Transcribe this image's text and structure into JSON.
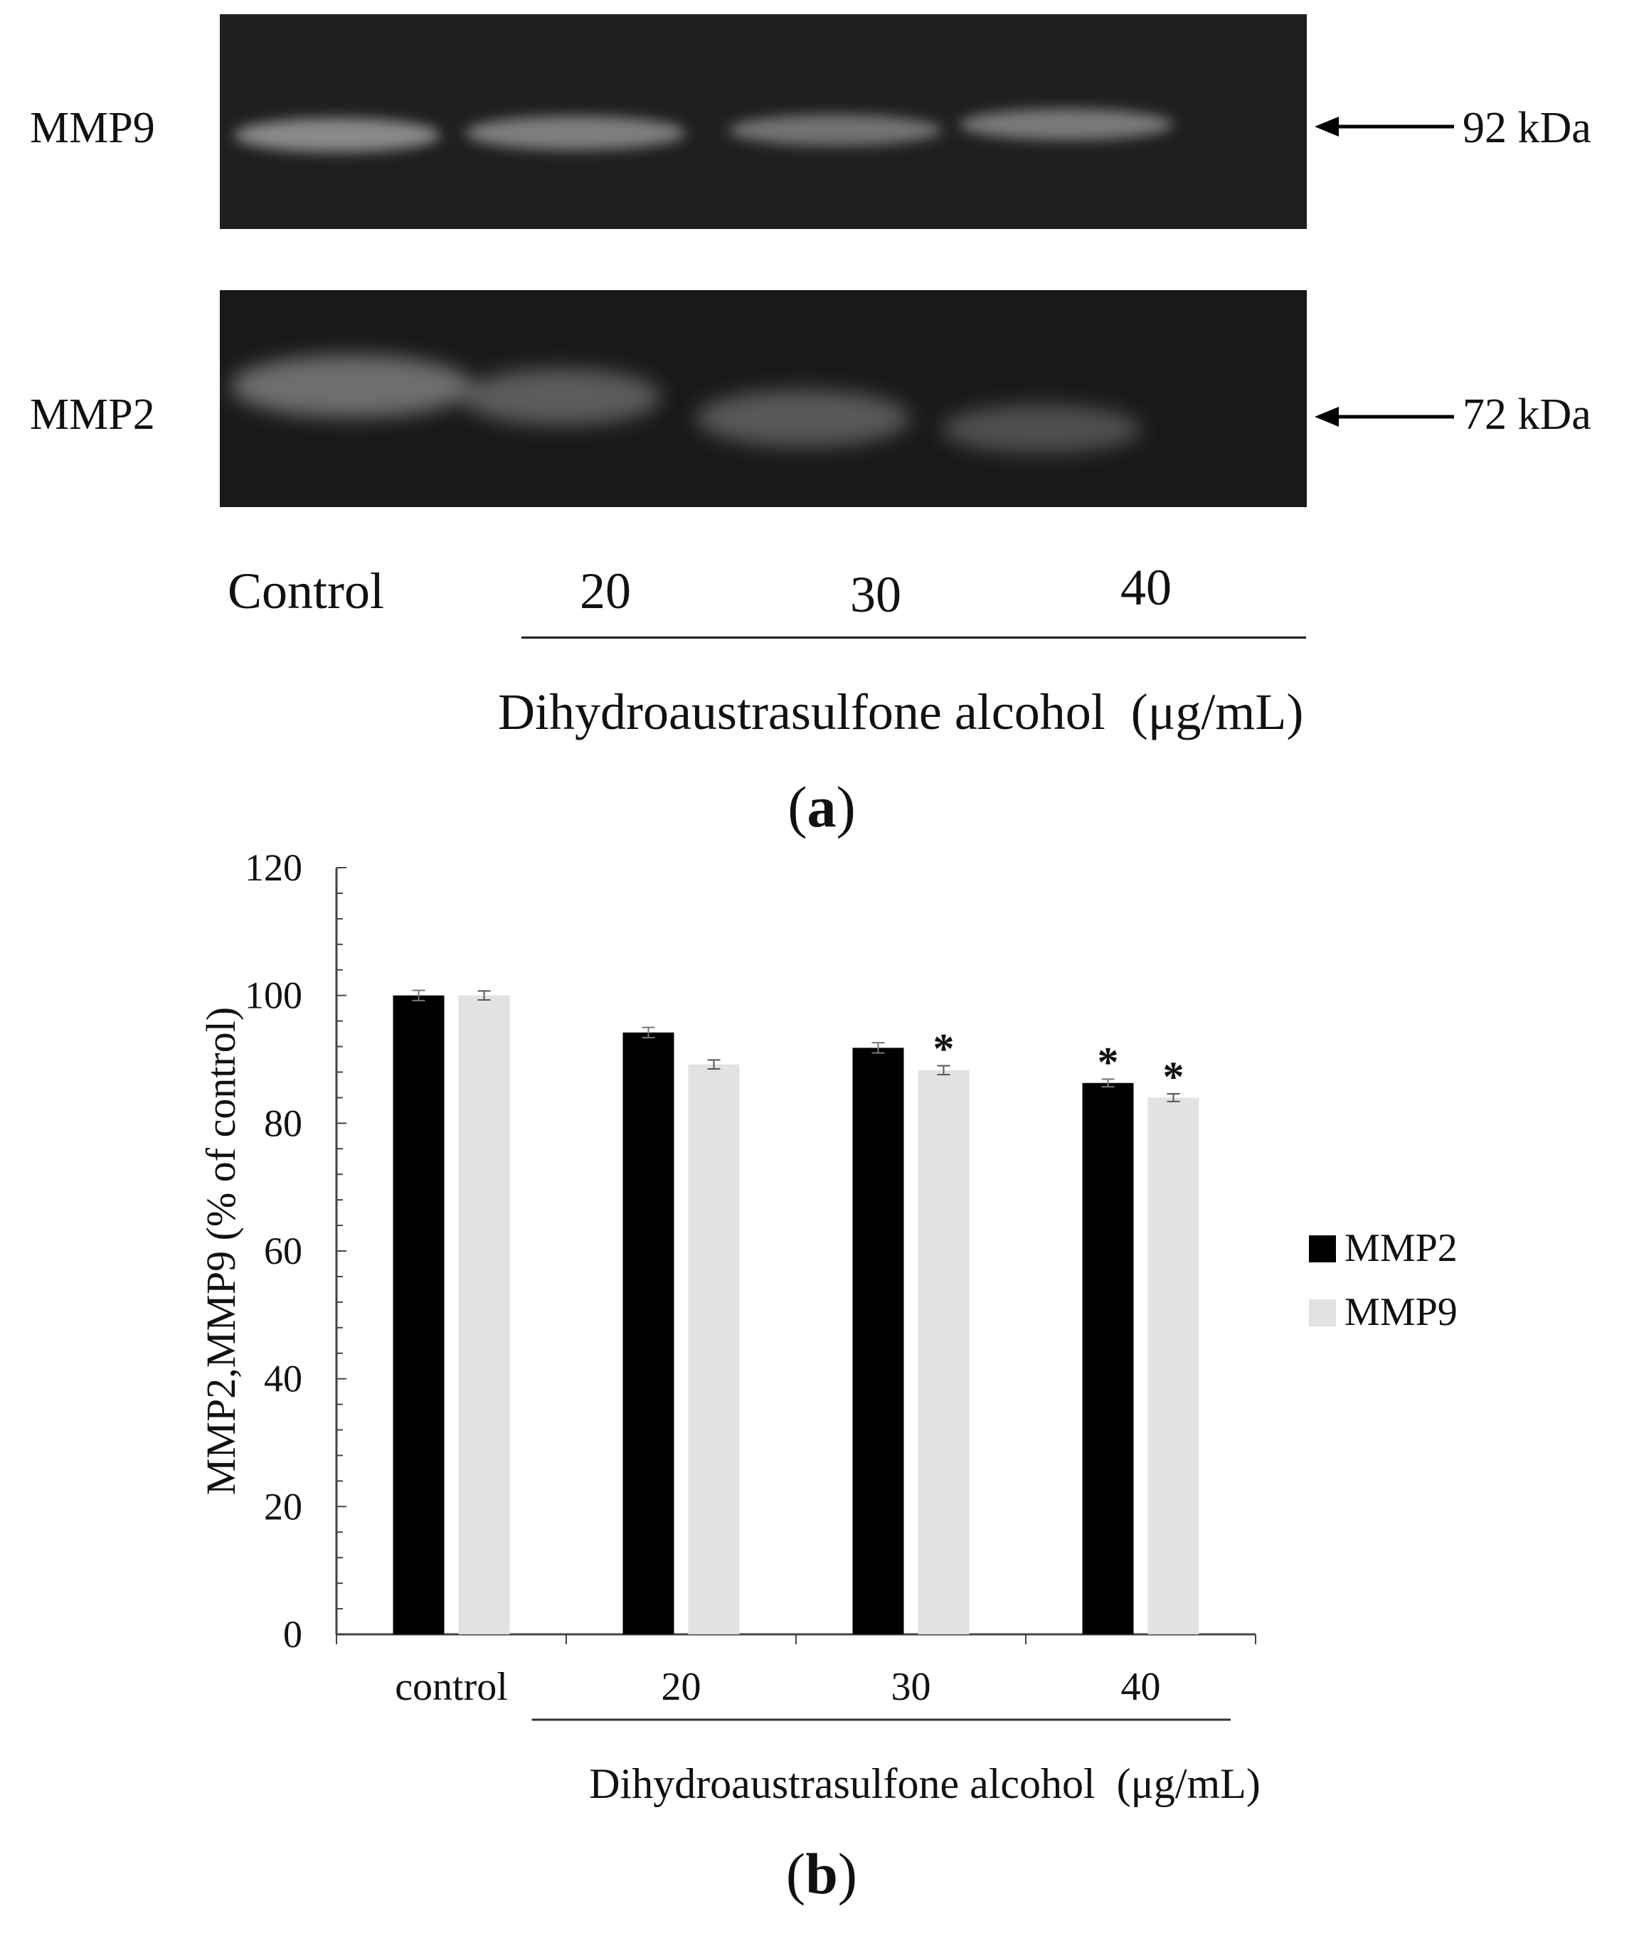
{
  "panel_a": {
    "tag_open": "(",
    "tag_letter": "a",
    "tag_close": ")",
    "gels": [
      {
        "label": "MMP9",
        "marker": "92 kDa"
      },
      {
        "label": "MMP2",
        "marker": "72 kDa"
      }
    ],
    "lanes": [
      "Control",
      "20",
      "30",
      "40"
    ],
    "treatment_label": "Dihydroaustrasulfone alcohol  (μg/mL)"
  },
  "panel_b": {
    "tag_open": "(",
    "tag_letter": "b",
    "tag_close": ")"
  },
  "chart_data": {
    "type": "bar",
    "categories": [
      "control",
      "20",
      "30",
      "40"
    ],
    "series": [
      {
        "name": "MMP2",
        "color": "#000000",
        "values": [
          100,
          94.2,
          91.8,
          86.3
        ],
        "errors": [
          0.8,
          0.8,
          0.8,
          0.6
        ],
        "significant": [
          false,
          false,
          false,
          true
        ]
      },
      {
        "name": "MMP9",
        "color": "#e2e2e2",
        "values": [
          100,
          89.2,
          88.3,
          84.0
        ],
        "errors": [
          0.7,
          0.7,
          0.7,
          0.6
        ],
        "significant": [
          false,
          false,
          true,
          true
        ]
      }
    ],
    "ylabel": "MMP2,MMP9 (% of control)",
    "xlabel": "Dihydroaustrasulfone alcohol  (μg/mL)",
    "ylim": [
      0,
      120
    ],
    "yticks": [
      "0",
      "20",
      "40",
      "60",
      "80",
      "100",
      "120"
    ],
    "significance_mark": "*",
    "legend_position": "right",
    "grid": false
  }
}
